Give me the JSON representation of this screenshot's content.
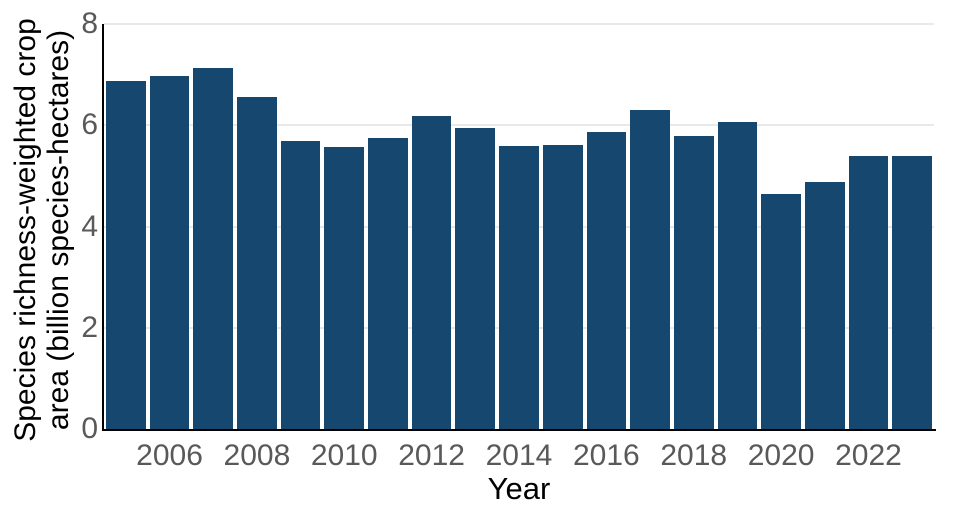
{
  "chart_data": {
    "type": "bar",
    "title": "",
    "xlabel": "Year",
    "ylabel": "Species richness-weighted crop area (billion species-hectares)",
    "ylabel_lines": [
      "Species richness-weighted crop",
      "area (billion species-hectares)"
    ],
    "categories": [
      "2005",
      "2006",
      "2007",
      "2008",
      "2009",
      "2010",
      "2011",
      "2012",
      "2013",
      "2014",
      "2015",
      "2016",
      "2017",
      "2018",
      "2019",
      "2020",
      "2021",
      "2022",
      "2023"
    ],
    "values": [
      6.87,
      6.97,
      7.14,
      6.56,
      5.69,
      5.57,
      5.74,
      6.18,
      5.94,
      5.59,
      5.61,
      5.87,
      6.3,
      5.78,
      6.06,
      4.65,
      4.87,
      5.4,
      5.4
    ],
    "ylim": [
      0,
      8
    ],
    "yticks": [
      0,
      2,
      4,
      6,
      8
    ],
    "xtick_labels": [
      "2006",
      "2008",
      "2010",
      "2012",
      "2014",
      "2016",
      "2018",
      "2020",
      "2022"
    ],
    "grid": "horizontal",
    "legend": "none",
    "colors": {
      "bar": "#15476F",
      "tick_text": "#595959",
      "axis_text": "#000000",
      "gridline": "#E9E9E9",
      "spine": "#000000",
      "background": "#FFFFFF"
    }
  }
}
